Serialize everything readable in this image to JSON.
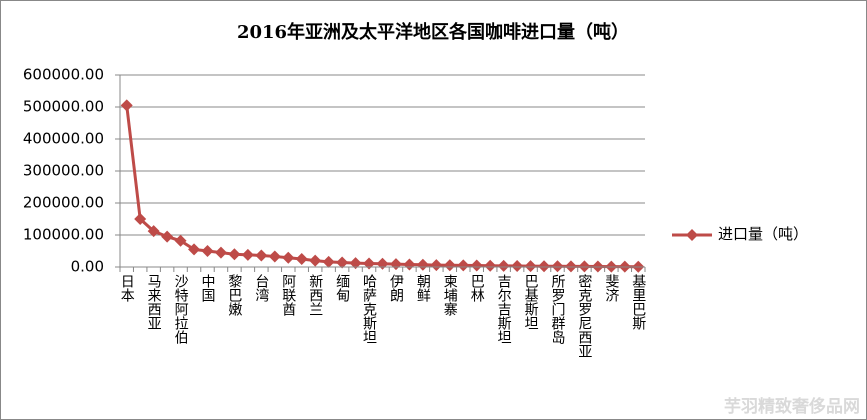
{
  "chart_data": {
    "type": "line",
    "title": "2016年亚洲及太平洋地区各国咖啡进口量（吨）",
    "categories": [
      "日本",
      null,
      "马来西亚",
      null,
      "沙特阿拉伯",
      null,
      "中国",
      null,
      "黎巴嫩",
      null,
      "台湾",
      null,
      "阿联酋",
      null,
      "新西兰",
      null,
      "缅甸",
      null,
      "哈萨克斯坦",
      null,
      "伊朗",
      null,
      "朝鲜",
      null,
      "柬埔寨",
      null,
      "巴林",
      null,
      "吉尔吉斯坦",
      null,
      "巴基斯坦",
      null,
      "所罗门群岛",
      null,
      "密克罗尼西亚",
      null,
      "斐济",
      null,
      "基里巴斯"
    ],
    "series": [
      {
        "name": "进口量（吨）",
        "color": "#be4b48",
        "values": [
          505000,
          150000,
          112000,
          95000,
          82000,
          55000,
          50000,
          45000,
          40000,
          38000,
          36000,
          33000,
          29000,
          25000,
          20000,
          16000,
          14000,
          12000,
          11000,
          10000,
          9000,
          8000,
          7000,
          6000,
          5500,
          5000,
          4500,
          4000,
          3500,
          3000,
          2800,
          2500,
          2200,
          2000,
          1800,
          1500,
          1200,
          1000,
          800
        ]
      }
    ],
    "ylim": [
      0,
      600000
    ],
    "yticks": [
      {
        "value": 0,
        "label": "0.00"
      },
      {
        "value": 100000,
        "label": "100000.00"
      },
      {
        "value": 200000,
        "label": "200000.00"
      },
      {
        "value": 300000,
        "label": "300000.00"
      },
      {
        "value": 400000,
        "label": "400000.00"
      },
      {
        "value": 500000,
        "label": "500000.00"
      },
      {
        "value": 600000,
        "label": "600000.00"
      }
    ],
    "grid": true,
    "legend": "right",
    "watermark": "芋羽精致奢侈品网"
  }
}
